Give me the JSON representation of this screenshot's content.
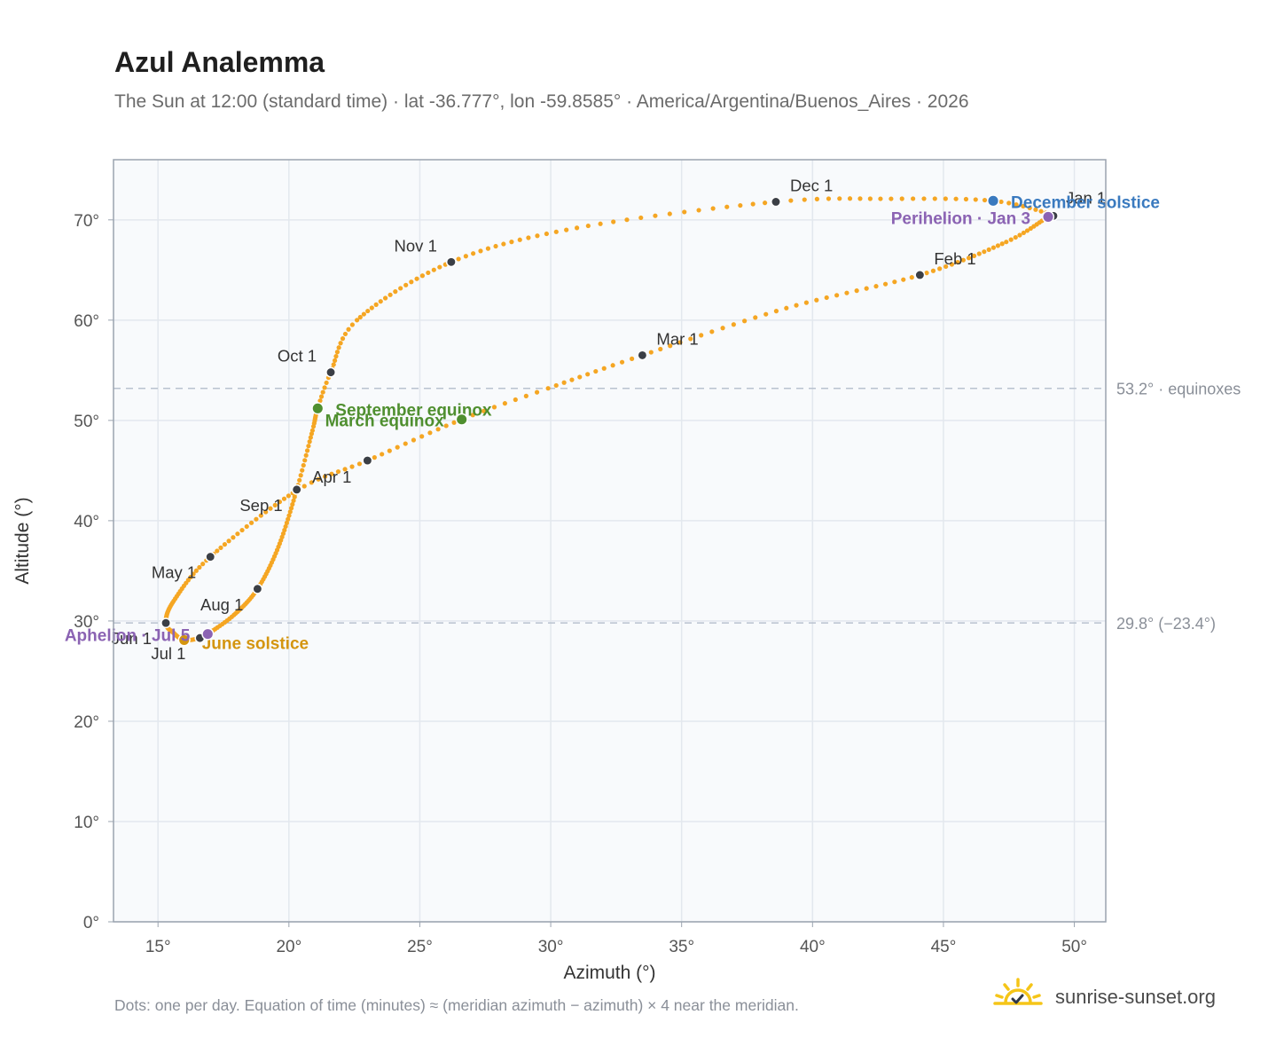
{
  "header": {
    "title": "Azul Analemma",
    "subtitle": "The Sun at 12:00 (standard time) · lat -36.777°, lon -59.8585° · America/Argentina/Buenos_Aires · 2026"
  },
  "footer": {
    "note": "Dots: one per day. Equation of time (minutes) ≈ (meridian azimuth − azimuth) × 4 near the meridian.",
    "brand": "sunrise-sunset.org",
    "logo_icon": "sun-check-icon"
  },
  "colors": {
    "curve": "#f5a623",
    "month_marker": "#3b3f46",
    "equinox": "#4f8f2f",
    "december_solstice": "#3a7abf",
    "june_solstice": "#d4950f",
    "apsis": "#8b63b3",
    "reference_line": "#b9c2cf",
    "plot_background": "#f8fafc",
    "grid": "#e3e8ee"
  },
  "chart_data": {
    "type": "scatter",
    "title": "Azul Analemma",
    "xlabel": "Azimuth (°)",
    "ylabel": "Altitude (°)",
    "xlim": [
      13.3,
      51.2
    ],
    "ylim": [
      0,
      76
    ],
    "xticks": [
      15,
      20,
      25,
      30,
      35,
      40,
      45,
      50
    ],
    "xtick_labels": [
      "15°",
      "20°",
      "25°",
      "30°",
      "35°",
      "40°",
      "45°",
      "50°"
    ],
    "yticks": [
      0,
      10,
      20,
      30,
      40,
      50,
      60,
      70
    ],
    "ytick_labels": [
      "0°",
      "10°",
      "20°",
      "30°",
      "40°",
      "50°",
      "60°",
      "70°"
    ],
    "grid": true,
    "series": [
      {
        "markers": "one per day",
        "anchors": [
          {
            "day": 0,
            "az": 49.2,
            "alt": 70.4
          },
          {
            "day": 2,
            "az": 49.0,
            "alt": 70.3
          },
          {
            "day": 15,
            "az": 47.4,
            "alt": 67.8
          },
          {
            "day": 31,
            "az": 44.1,
            "alt": 64.5
          },
          {
            "day": 45,
            "az": 39.0,
            "alt": 61.2
          },
          {
            "day": 59,
            "az": 33.5,
            "alt": 56.5
          },
          {
            "day": 70,
            "az": 29.9,
            "alt": 53.2
          },
          {
            "day": 78,
            "az": 26.6,
            "alt": 50.1
          },
          {
            "day": 90,
            "az": 23.0,
            "alt": 46.0
          },
          {
            "day": 100,
            "az": 20.3,
            "alt": 43.0
          },
          {
            "day": 120,
            "az": 17.0,
            "alt": 36.4
          },
          {
            "day": 135,
            "az": 15.6,
            "alt": 32.0
          },
          {
            "day": 151,
            "az": 15.3,
            "alt": 29.8
          },
          {
            "day": 162,
            "az": 15.6,
            "alt": 28.8
          },
          {
            "day": 171,
            "az": 16.0,
            "alt": 28.1
          },
          {
            "day": 181,
            "az": 16.6,
            "alt": 28.3
          },
          {
            "day": 185,
            "az": 16.9,
            "alt": 28.7
          },
          {
            "day": 197,
            "az": 17.9,
            "alt": 30.6
          },
          {
            "day": 212,
            "az": 18.8,
            "alt": 33.2
          },
          {
            "day": 227,
            "az": 19.6,
            "alt": 37.4
          },
          {
            "day": 243,
            "az": 20.3,
            "alt": 43.1
          },
          {
            "day": 256,
            "az": 20.9,
            "alt": 49.0
          },
          {
            "day": 265,
            "az": 21.1,
            "alt": 51.2
          },
          {
            "day": 273,
            "az": 21.6,
            "alt": 54.8
          },
          {
            "day": 285,
            "az": 22.6,
            "alt": 60.0
          },
          {
            "day": 304,
            "az": 26.2,
            "alt": 65.8
          },
          {
            "day": 319,
            "az": 31.0,
            "alt": 69.2
          },
          {
            "day": 334,
            "az": 38.6,
            "alt": 71.8
          },
          {
            "day": 344,
            "az": 43.0,
            "alt": 72.1
          },
          {
            "day": 354,
            "az": 46.9,
            "alt": 71.9
          },
          {
            "day": 364,
            "az": 49.2,
            "alt": 70.5
          }
        ]
      }
    ],
    "month_markers": [
      {
        "label": "Jan 1",
        "az": 49.2,
        "alt": 70.4,
        "anchor": "start",
        "dx": 14,
        "dy": -14
      },
      {
        "label": "Feb 1",
        "az": 44.1,
        "alt": 64.5,
        "anchor": "start",
        "dx": 16,
        "dy": -12
      },
      {
        "label": "Mar 1",
        "az": 33.5,
        "alt": 56.5,
        "anchor": "start",
        "dx": 16,
        "dy": -12
      },
      {
        "label": "Apr 1",
        "az": 23.0,
        "alt": 46.0,
        "anchor": "end",
        "dx": -18,
        "dy": 25
      },
      {
        "label": "May 1",
        "az": 17.0,
        "alt": 36.4,
        "anchor": "end",
        "dx": -16,
        "dy": 24
      },
      {
        "label": "Jun 1",
        "az": 15.3,
        "alt": 29.8,
        "anchor": "end",
        "dx": -16,
        "dy": 24
      },
      {
        "label": "Jul 1",
        "az": 16.6,
        "alt": 28.3,
        "anchor": "end",
        "dx": -16,
        "dy": 24
      },
      {
        "label": "Aug 1",
        "az": 18.8,
        "alt": 33.2,
        "anchor": "end",
        "dx": -16,
        "dy": 24
      },
      {
        "label": "Sep 1",
        "az": 20.3,
        "alt": 43.1,
        "anchor": "end",
        "dx": -16,
        "dy": 24
      },
      {
        "label": "Oct 1",
        "az": 21.6,
        "alt": 54.8,
        "anchor": "end",
        "dx": -16,
        "dy": -12
      },
      {
        "label": "Nov 1",
        "az": 26.2,
        "alt": 65.8,
        "anchor": "end",
        "dx": -16,
        "dy": -12
      },
      {
        "label": "Dec 1",
        "az": 38.6,
        "alt": 71.8,
        "anchor": "start",
        "dx": 16,
        "dy": -12
      }
    ],
    "events": [
      {
        "label": "September equinox",
        "az": 21.1,
        "alt": 51.2,
        "color": "#4f8f2f",
        "anchor": "start",
        "dx": 20,
        "dy": 8
      },
      {
        "label": "March equinox",
        "az": 26.6,
        "alt": 50.1,
        "color": "#4f8f2f",
        "anchor": "end",
        "dx": -20,
        "dy": 8
      },
      {
        "label": "December solstice",
        "az": 46.9,
        "alt": 71.9,
        "color": "#3a7abf",
        "anchor": "start",
        "dx": 20,
        "dy": 8
      },
      {
        "label": "June solstice",
        "az": 16.0,
        "alt": 28.1,
        "color": "#d4950f",
        "anchor": "start",
        "dx": 20,
        "dy": 10
      },
      {
        "label": "Perihelion · Jan 3",
        "az": 49.0,
        "alt": 70.3,
        "color": "#8b63b3",
        "anchor": "end",
        "dx": -20,
        "dy": 8
      },
      {
        "label": "Aphelion · Jul 5",
        "az": 16.9,
        "alt": 28.7,
        "color": "#8b63b3",
        "anchor": "end",
        "dx": -20,
        "dy": 8
      }
    ],
    "reference_lines": [
      {
        "alt": 53.2,
        "label": "53.2° · equinoxes"
      },
      {
        "alt": 29.8,
        "label": "29.8° (−23.4°)"
      }
    ]
  }
}
